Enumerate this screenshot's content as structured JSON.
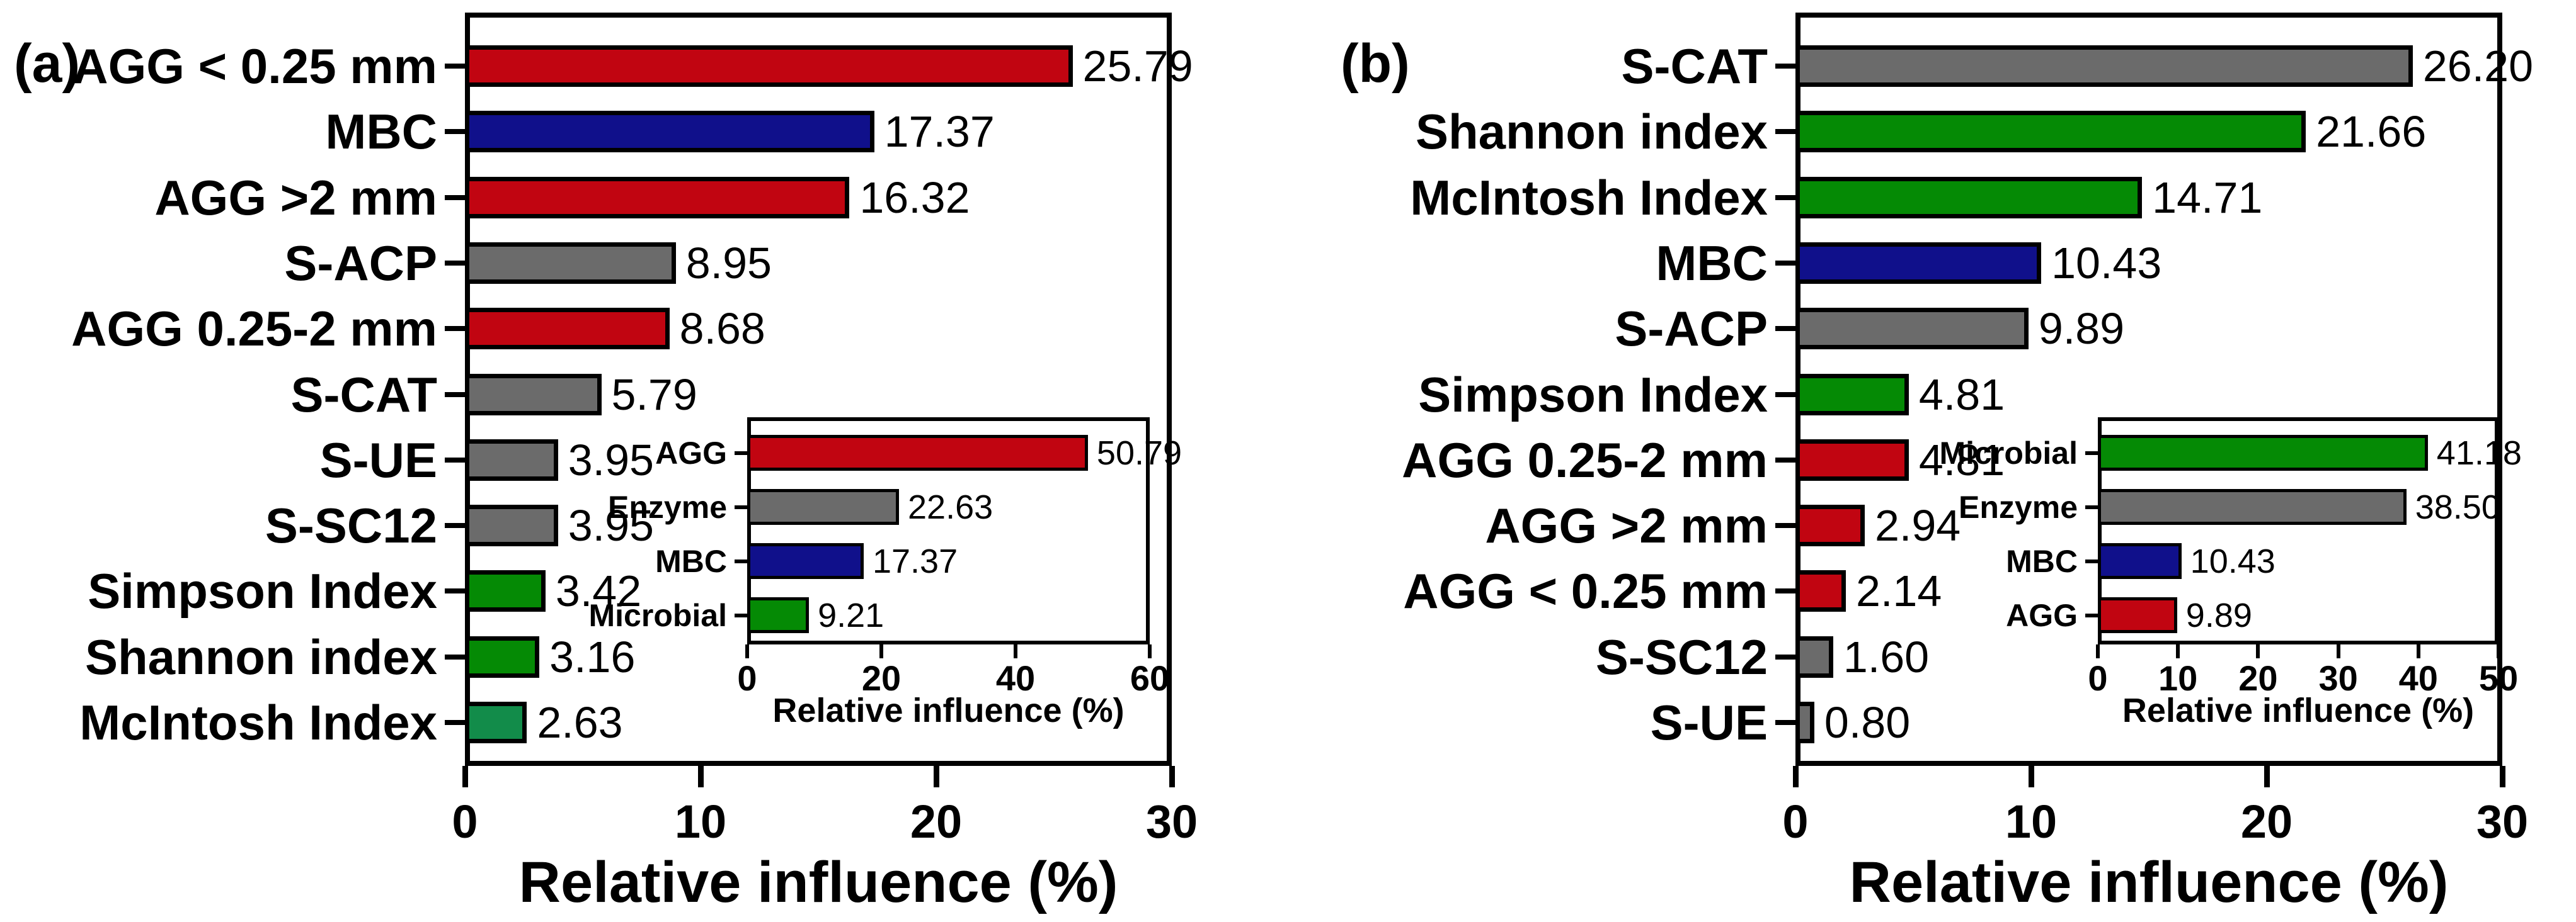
{
  "panels": {
    "a": {
      "tag": "(a)"
    },
    "b": {
      "tag": "(b)"
    }
  },
  "colors": {
    "agg_red": "#C10511",
    "mbc_blue": "#10108B",
    "enzyme_gray": "#6B6B6B",
    "microbial_green": "#058A05",
    "mcintosh_seagreen": "#128C4A",
    "bar_border": "#000000",
    "text": "#000000"
  },
  "chart_data": [
    {
      "id": "panel-a-main",
      "type": "bar",
      "orientation": "horizontal",
      "title": "",
      "xlabel": "Relative influence (%)",
      "xlim": [
        0,
        30
      ],
      "xticks": [
        "0",
        "10",
        "20",
        "30"
      ],
      "grid": false,
      "legend": "none",
      "categories": [
        "AGG < 0.25 mm",
        "MBC",
        "AGG >2 mm",
        "S-ACP",
        "AGG 0.25-2 mm",
        "S-CAT",
        "S-UE",
        "S-SC12",
        "Simpson Index",
        "Shannon index",
        "McIntosh Index"
      ],
      "values": [
        25.79,
        17.37,
        16.32,
        8.95,
        8.68,
        5.79,
        3.95,
        3.95,
        3.42,
        3.16,
        2.63
      ],
      "value_labels": [
        "25.79",
        "17.37",
        "16.32",
        "8.95",
        "8.68",
        "5.79",
        "3.95",
        "3.95",
        "3.42",
        "3.16",
        "2.63"
      ],
      "bar_colors": [
        "#C10511",
        "#10108B",
        "#C10511",
        "#6B6B6B",
        "#C10511",
        "#6B6B6B",
        "#6B6B6B",
        "#6B6B6B",
        "#058A05",
        "#058A05",
        "#128C4A"
      ]
    },
    {
      "id": "panel-a-inset",
      "type": "bar",
      "orientation": "horizontal",
      "title": "",
      "xlabel": "Relative influence (%)",
      "xlim": [
        0,
        60
      ],
      "xticks": [
        "0",
        "20",
        "40",
        "60"
      ],
      "grid": false,
      "legend": "none",
      "categories": [
        "AGG",
        "Enzyme",
        "MBC",
        "Microbial"
      ],
      "values": [
        50.79,
        22.63,
        17.37,
        9.21
      ],
      "value_labels": [
        "50.79",
        "22.63",
        "17.37",
        "9.21"
      ],
      "bar_colors": [
        "#C10511",
        "#6B6B6B",
        "#10108B",
        "#058A05"
      ]
    },
    {
      "id": "panel-b-main",
      "type": "bar",
      "orientation": "horizontal",
      "title": "",
      "xlabel": "Relative influence (%)",
      "xlim": [
        0,
        30
      ],
      "xticks": [
        "0",
        "10",
        "20",
        "30"
      ],
      "grid": false,
      "legend": "none",
      "categories": [
        "S-CAT",
        "Shannon index",
        "McIntosh Index",
        "MBC",
        "S-ACP",
        "Simpson Index",
        "AGG 0.25-2 mm",
        "AGG >2 mm",
        "AGG < 0.25 mm",
        "S-SC12",
        "S-UE"
      ],
      "values": [
        26.2,
        21.66,
        14.71,
        10.43,
        9.89,
        4.81,
        4.81,
        2.94,
        2.14,
        1.6,
        0.8
      ],
      "value_labels": [
        "26.20",
        "21.66",
        "14.71",
        "10.43",
        "9.89",
        "4.81",
        "4.81",
        "2.94",
        "2.14",
        "1.60",
        "0.80"
      ],
      "bar_colors": [
        "#6B6B6B",
        "#058A05",
        "#058A05",
        "#10108B",
        "#6B6B6B",
        "#058A05",
        "#C10511",
        "#C10511",
        "#C10511",
        "#6B6B6B",
        "#6B6B6B"
      ]
    },
    {
      "id": "panel-b-inset",
      "type": "bar",
      "orientation": "horizontal",
      "title": "",
      "xlabel": "Relative influence (%)",
      "xlim": [
        0,
        50
      ],
      "xticks": [
        "0",
        "10",
        "20",
        "30",
        "40",
        "50"
      ],
      "grid": false,
      "legend": "none",
      "categories": [
        "Microbial",
        "Enzyme",
        "MBC",
        "AGG"
      ],
      "values": [
        41.18,
        38.5,
        10.43,
        9.89
      ],
      "value_labels": [
        "41.18",
        "38.50",
        "10.43",
        "9.89"
      ],
      "bar_colors": [
        "#058A05",
        "#6B6B6B",
        "#10108B",
        "#C10511"
      ]
    }
  ]
}
